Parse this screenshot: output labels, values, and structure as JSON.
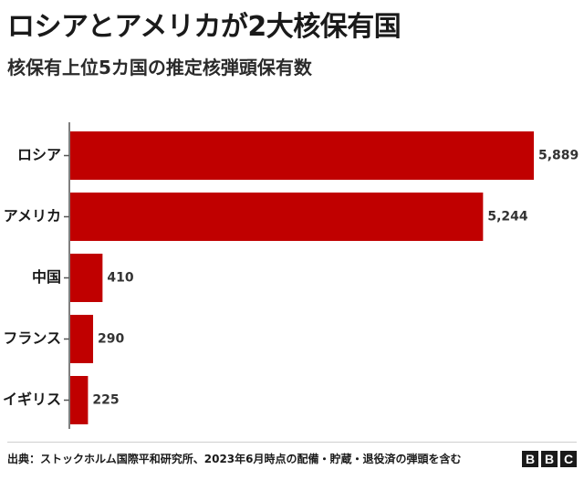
{
  "header": {
    "title": "ロシアとアメリカが2大核保有国",
    "subtitle": "核保有上位5カ国の推定核弾頭保有数"
  },
  "footer": {
    "source": "出典：ストックホルム国際平和研究所、2023年6月時点の配備・貯蔵・退役済の弾頭を含む",
    "logo_letters": [
      "B",
      "B",
      "C"
    ]
  },
  "colors": {
    "bar": "#c00000",
    "axis": "#555555"
  },
  "chart_data": {
    "type": "bar",
    "orientation": "horizontal",
    "title": "ロシアとアメリカが2大核保有国",
    "subtitle": "核保有上位5カ国の推定核弾頭保有数",
    "categories": [
      "ロシア",
      "アメリカ",
      "中国",
      "フランス",
      "イギリス"
    ],
    "values": [
      5889,
      5244,
      410,
      290,
      225
    ],
    "value_labels": [
      "5,889",
      "5,244",
      "410",
      "290",
      "225"
    ],
    "xlim": [
      0,
      6000
    ],
    "grid": false,
    "legend": "none"
  }
}
